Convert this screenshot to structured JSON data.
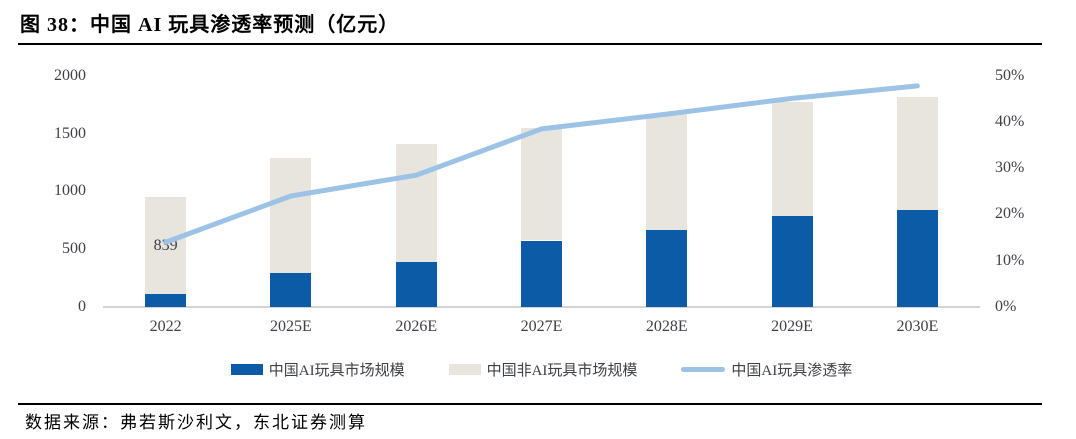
{
  "figure": {
    "title": "图 38：中国 AI 玩具渗透率预测（亿元）",
    "source": "数据来源：弗若斯沙利文，东北证券测算"
  },
  "colors": {
    "ai_bar": "#0b5ba6",
    "non_ai_bar": "#e8e5de",
    "penetration_line": "#9cc2e5",
    "axis_line": "#d4d4d4",
    "tick_text": "#3f4045",
    "rule": "#000000",
    "background": "#ffffff"
  },
  "chart_data": {
    "type": "bar",
    "subtype": "stacked-bar-with-line-overlay",
    "title": "图 38：中国 AI 玩具渗透率预测（亿元）",
    "categories": [
      "2022",
      "2025E",
      "2026E",
      "2027E",
      "2028E",
      "2029E",
      "2030E"
    ],
    "series": [
      {
        "name": "中国AI玩具市场规模",
        "type": "bar",
        "stack": "toys",
        "axis": "left",
        "color_key": "ai_bar",
        "swatch": "rect",
        "values": [
          110,
          290,
          390,
          575,
          670,
          785,
          839
        ]
      },
      {
        "name": "中国非AI玩具市场规模",
        "type": "bar",
        "stack": "toys",
        "axis": "left",
        "color_key": "non_ai_bar",
        "swatch": "rect",
        "values": [
          839,
          1000,
          1020,
          970,
          1000,
          985,
          981
        ]
      },
      {
        "name": "中国AI玩具渗透率",
        "type": "line",
        "axis": "right",
        "color_key": "penetration_line",
        "swatch": "line",
        "values": [
          14,
          24,
          28.5,
          38.5,
          41.7,
          45.1,
          47.8
        ]
      }
    ],
    "left_axis": {
      "min": 0,
      "max": 2000,
      "tick_values": [
        0,
        500,
        1000,
        1500,
        2000
      ],
      "tick_labels": [
        "0",
        "500",
        "1000",
        "1500",
        "2000"
      ]
    },
    "right_axis": {
      "min": 0,
      "max": 50,
      "tick_values": [
        0,
        10,
        20,
        30,
        40,
        50
      ],
      "tick_labels": [
        "0%",
        "10%",
        "20%",
        "30%",
        "40%",
        "50%"
      ]
    },
    "data_labels": [
      {
        "series_index": 1,
        "category_index": 0,
        "text": "839"
      }
    ],
    "legend_position": "bottom-center",
    "grid": "off"
  }
}
